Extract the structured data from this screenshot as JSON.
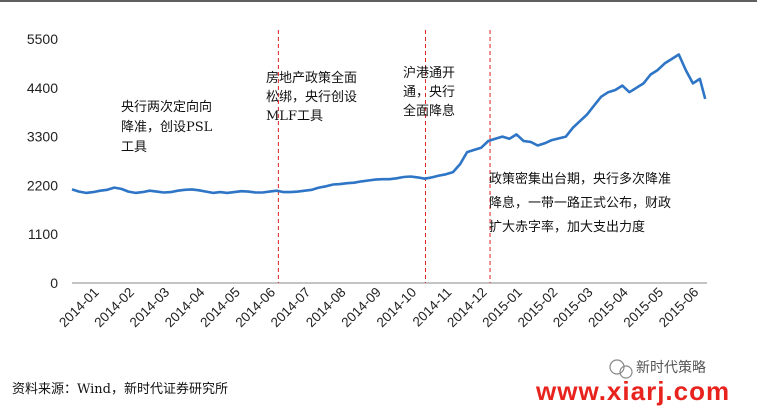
{
  "chart_data": {
    "type": "line",
    "title": "",
    "xlabel": "",
    "ylabel": "",
    "ylim": [
      0,
      5500
    ],
    "yticks": [
      0,
      1100,
      2200,
      3300,
      4400,
      5500
    ],
    "xtick_labels": [
      "2014-01",
      "2014-02",
      "2014-03",
      "2014-04",
      "2014-05",
      "2014-06",
      "2014-07",
      "2014-08",
      "2014-09",
      "2014-10",
      "2014-11",
      "2014-12",
      "2015-01",
      "2015-02",
      "2015-03",
      "2015-04",
      "2015-05",
      "2015-06"
    ],
    "grid": false,
    "legend": "none",
    "series": [
      {
        "color": "#2e75c6",
        "x": [
          0,
          0.2,
          0.4,
          0.6,
          0.8,
          1.0,
          1.2,
          1.4,
          1.6,
          1.8,
          2.0,
          2.2,
          2.4,
          2.6,
          2.8,
          3.0,
          3.2,
          3.4,
          3.6,
          3.8,
          4.0,
          4.2,
          4.4,
          4.6,
          4.8,
          5.0,
          5.2,
          5.4,
          5.6,
          5.8,
          6.0,
          6.2,
          6.4,
          6.6,
          6.8,
          7.0,
          7.2,
          7.4,
          7.6,
          7.8,
          8.0,
          8.2,
          8.4,
          8.6,
          8.8,
          9.0,
          9.2,
          9.4,
          9.6,
          9.8,
          10.0,
          10.2,
          10.4,
          10.6,
          10.8,
          11.0,
          11.2,
          11.4,
          11.6,
          11.8,
          12.0,
          12.2,
          12.4,
          12.6,
          12.8,
          13.0,
          13.2,
          13.4,
          13.6,
          13.8,
          14.0,
          14.2,
          14.4,
          14.6,
          14.8,
          15.0,
          15.2,
          15.4,
          15.6,
          15.8,
          16.0,
          16.2,
          16.4,
          16.6,
          16.8,
          17.0,
          17.2,
          17.4,
          17.6,
          17.8,
          17.95
        ],
        "y": [
          2110,
          2060,
          2030,
          2050,
          2080,
          2100,
          2150,
          2120,
          2060,
          2030,
          2050,
          2080,
          2060,
          2040,
          2050,
          2080,
          2100,
          2110,
          2090,
          2060,
          2030,
          2050,
          2030,
          2050,
          2070,
          2060,
          2040,
          2040,
          2060,
          2080,
          2050,
          2050,
          2060,
          2080,
          2100,
          2150,
          2180,
          2220,
          2230,
          2250,
          2260,
          2290,
          2310,
          2330,
          2340,
          2340,
          2360,
          2390,
          2400,
          2380,
          2350,
          2380,
          2420,
          2450,
          2500,
          2680,
          2950,
          3000,
          3050,
          3200,
          3250,
          3300,
          3250,
          3350,
          3200,
          3180,
          3100,
          3150,
          3220,
          3260,
          3300,
          3500,
          3650,
          3800,
          4000,
          4200,
          4300,
          4350,
          4450,
          4300,
          4400,
          4500,
          4700,
          4800,
          4950,
          5050,
          5150,
          4800,
          4500,
          4600,
          4150
        ]
      }
    ],
    "vlines": [
      5.85,
      10.02,
      11.85
    ],
    "annotations": [
      "央行两次定向降准，创设PSL工具",
      "房地产政策全面松绑，央行创设MLF工具",
      "沪港通开通，央行全面降息",
      "政策密集出台期，央行多次降准降息，一带一路正式公布，财政扩大赤字率，加大支出力度"
    ]
  },
  "annotations_lines": [
    [
      "央行两次定向向",
      "降准，创设PSL",
      "工具"
    ],
    [
      "房地产政策全面",
      "松绑，央行创设",
      "MLF工具"
    ],
    [
      "沪港通开",
      "通，央行",
      "全面降息"
    ],
    [
      "政策密集出台期，央行多次降准",
      "降息，一带一路正式公布，财政",
      "扩大赤字率，加大支出力度"
    ]
  ],
  "source_text": "资料来源：Wind，新时代证券研究所",
  "watermark": {
    "wechat_label": "新时代策略",
    "url": "www.xiarj.com"
  }
}
